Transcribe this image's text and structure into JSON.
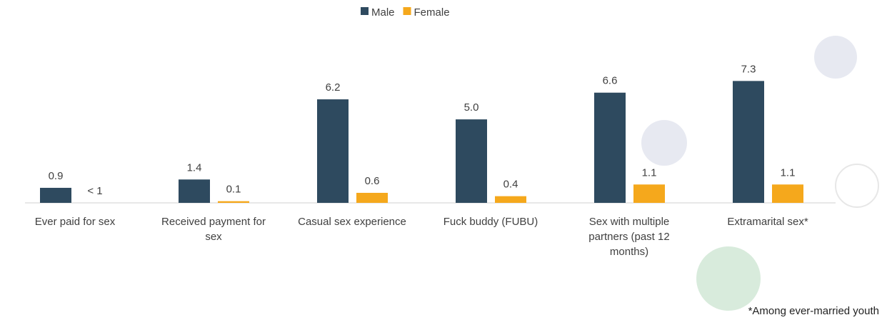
{
  "chart_data": {
    "type": "bar",
    "categories": [
      "Ever paid for sex",
      "Received payment for sex",
      "Casual sex experience",
      "Fuck buddy (FUBU)",
      "Sex with multiple partners (past 12 months)",
      "Extramarital sex*"
    ],
    "series": [
      {
        "name": "Male",
        "color": "#2e4a5f",
        "values": [
          0.9,
          1.4,
          6.2,
          5.0,
          6.6,
          7.3
        ],
        "value_labels": [
          "0.9",
          "1.4",
          "6.2",
          "5.0",
          "6.6",
          "7.3"
        ]
      },
      {
        "name": "Female",
        "color": "#f5a81c",
        "values": [
          null,
          0.1,
          0.6,
          0.4,
          1.1,
          1.1
        ],
        "value_labels": [
          "< 1",
          "0.1",
          "0.6",
          "0.4",
          "1.1",
          "1.1"
        ]
      }
    ],
    "ylim": [
      0,
      8
    ],
    "legend": "top",
    "footnote": "*Among ever-married youth"
  }
}
